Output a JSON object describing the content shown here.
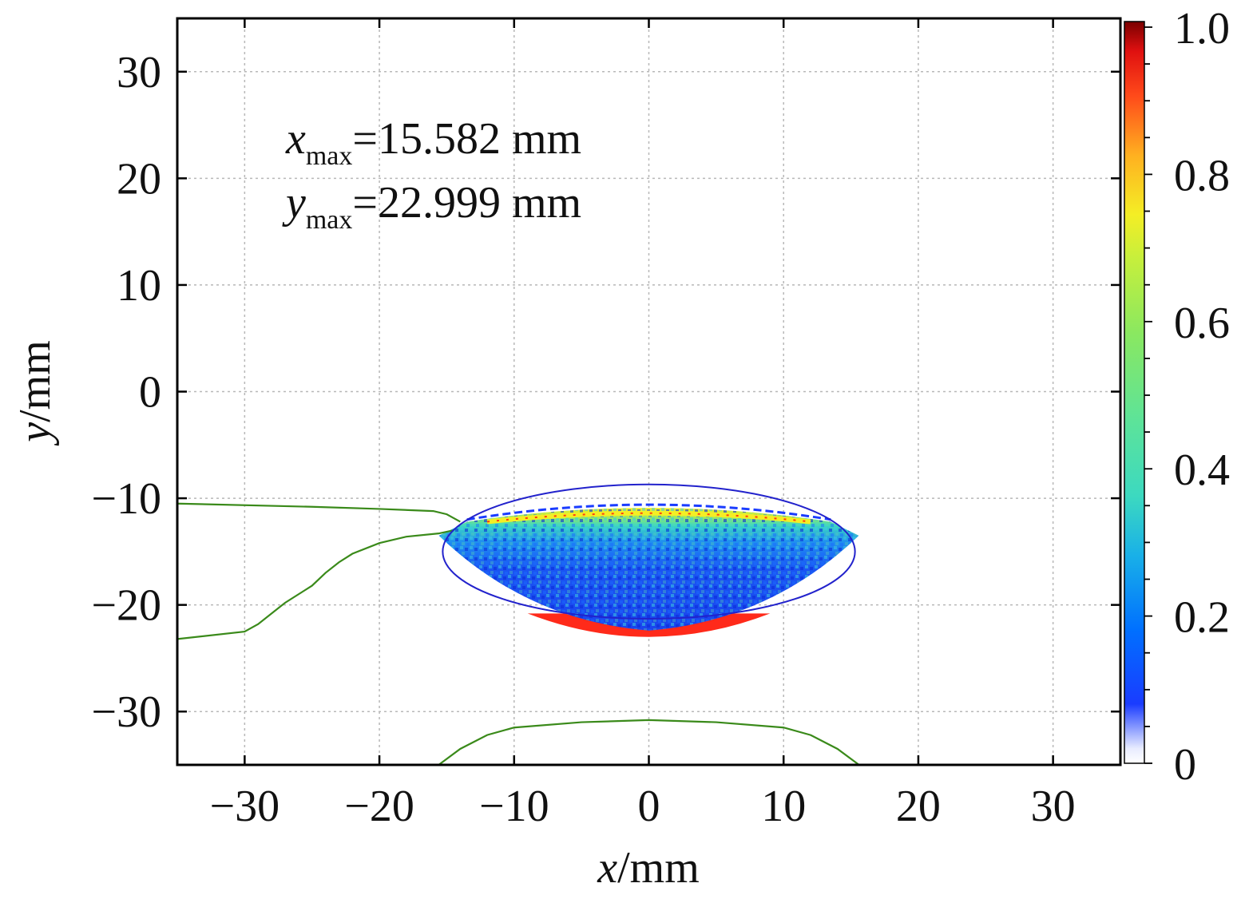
{
  "chart_data": {
    "type": "heatmap",
    "title": "",
    "xlabel": {
      "var": "x",
      "unit": "/mm"
    },
    "ylabel": {
      "var": "y",
      "unit": "/mm"
    },
    "xlim": [
      -35,
      35
    ],
    "ylim": [
      -35,
      35
    ],
    "xticks": [
      -30,
      -20,
      -10,
      0,
      10,
      20,
      30
    ],
    "yticks": [
      -30,
      -20,
      -10,
      0,
      10,
      20,
      30
    ],
    "xtick_labels": [
      "−30",
      "−20",
      "−10",
      "0",
      "10",
      "20",
      "30"
    ],
    "ytick_labels": [
      "−30",
      "−20",
      "−10",
      "0",
      "10",
      "20",
      "30"
    ],
    "grid": true,
    "colorbar": {
      "range": [
        0,
        1.0
      ],
      "ticks": [
        0,
        0.2,
        0.4,
        0.6,
        0.8,
        1.0
      ],
      "tick_labels": [
        "0",
        "0.2",
        "0.4",
        "0.6",
        "0.8",
        "1.0"
      ],
      "colormap": "jet"
    },
    "annotations": [
      {
        "var": "x",
        "sub": "max",
        "text": "=15.582 mm",
        "value": 15.582
      },
      {
        "var": "y",
        "sub": "max",
        "text": "=22.999 mm",
        "value": 22.999
      }
    ],
    "heatmap_region": {
      "description_free": true,
      "x_range": [
        -15.582,
        15.582
      ],
      "top_boundary_y": -10.5,
      "shoulder_y": -13.5,
      "bottom_y": -22.999,
      "red_cap_band_y": [
        -22.999,
        -20.5
      ]
    },
    "outline_ellipse": {
      "cx": 0,
      "cy": -15,
      "rx": 15.3,
      "ry": 6.3,
      "color": "#2222cc"
    },
    "green_curves": [
      {
        "name": "upper-left",
        "color": "#3a8a1a",
        "points": [
          [
            -35,
            -10.5
          ],
          [
            -25,
            -10.8
          ],
          [
            -20,
            -11.0
          ],
          [
            -16,
            -11.2
          ],
          [
            -15,
            -11.5
          ],
          [
            -14,
            -12.2
          ]
        ]
      },
      {
        "name": "lower-left",
        "color": "#3a8a1a",
        "points": [
          [
            -35,
            -23.2
          ],
          [
            -30,
            -22.5
          ],
          [
            -29,
            -21.8
          ],
          [
            -27,
            -19.8
          ],
          [
            -25,
            -18.2
          ],
          [
            -24,
            -17.0
          ],
          [
            -23,
            -16.0
          ],
          [
            -22,
            -15.2
          ],
          [
            -20,
            -14.2
          ],
          [
            -18,
            -13.6
          ],
          [
            -15.6,
            -13.3
          ],
          [
            -14.5,
            -13.0
          ]
        ]
      },
      {
        "name": "bottom-arc",
        "color": "#3a8a1a",
        "points": [
          [
            -15.6,
            -35
          ],
          [
            -14,
            -33.5
          ],
          [
            -12,
            -32.2
          ],
          [
            -10,
            -31.5
          ],
          [
            -5,
            -31.0
          ],
          [
            0,
            -30.8
          ],
          [
            5,
            -31.0
          ],
          [
            10,
            -31.5
          ],
          [
            12,
            -32.2
          ],
          [
            14,
            -33.5
          ],
          [
            15.6,
            -35
          ]
        ]
      }
    ]
  }
}
